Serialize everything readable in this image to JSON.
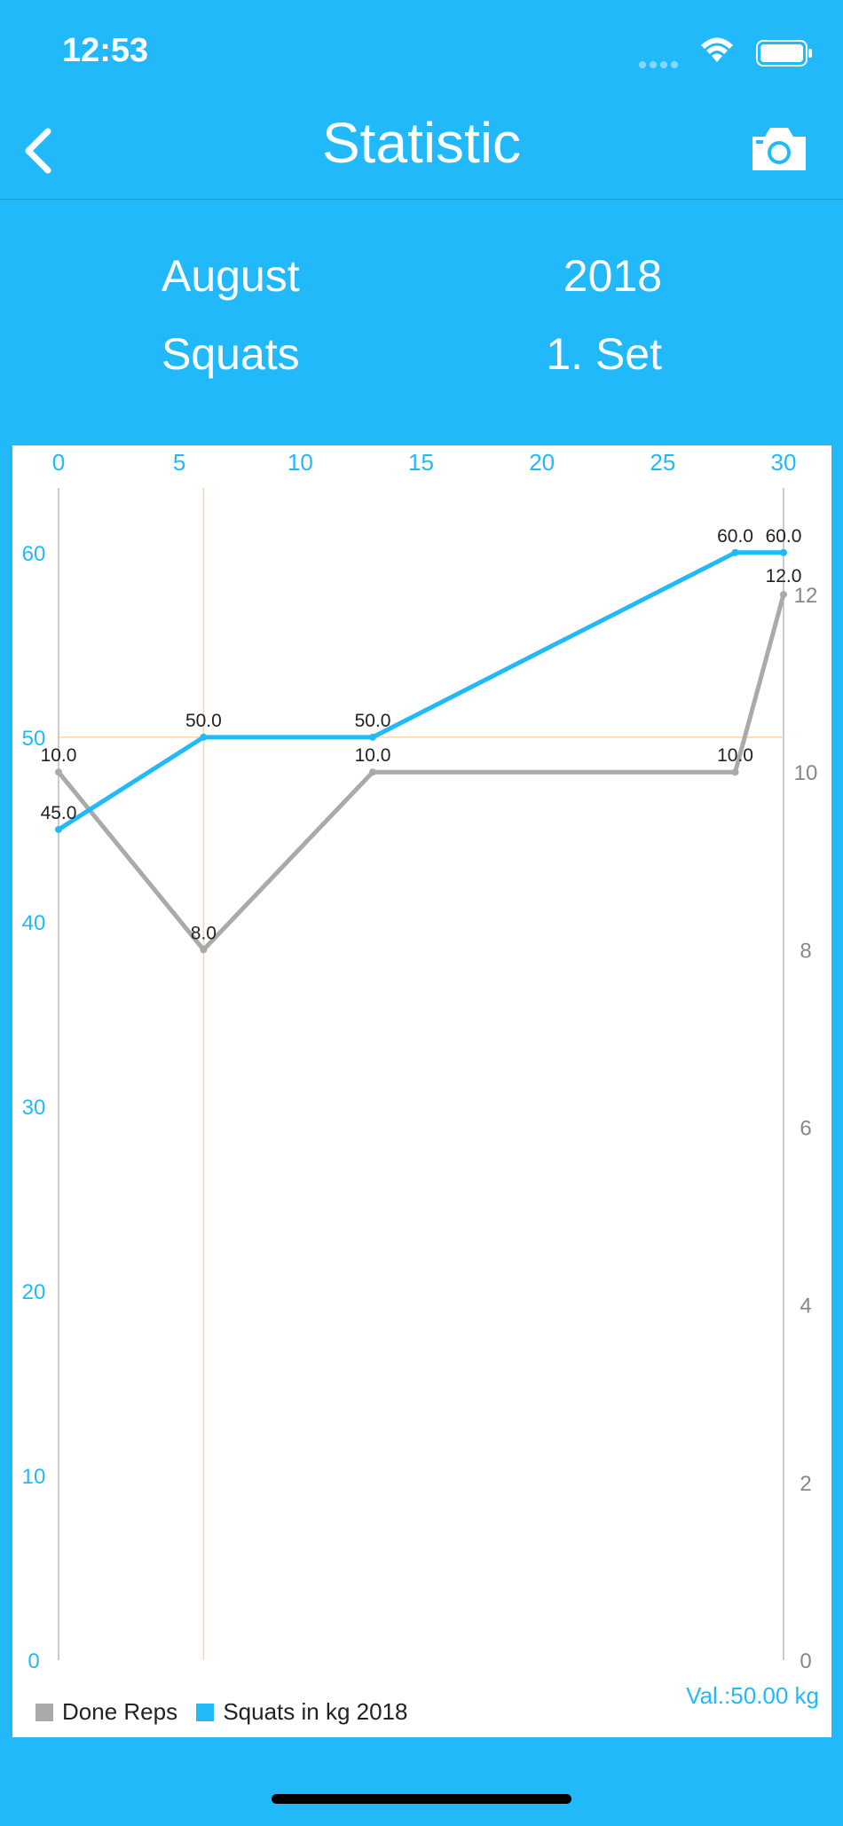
{
  "status_bar": {
    "time": "12:53"
  },
  "nav": {
    "title": "Statistic",
    "back_icon": "chevron-left-icon",
    "camera_icon": "camera-icon"
  },
  "filters": {
    "month": "August",
    "year": "2018",
    "exercise": "Squats",
    "set": "1. Set"
  },
  "colors": {
    "accent": "#22b9fb",
    "reps": "#aaaaaa",
    "highlight": "#ffd2a6"
  },
  "legend": {
    "reps_label": "Done Reps",
    "weight_label": "Squats in kg 2018"
  },
  "highlight_value": "Val.:50.00 kg",
  "chart_data": {
    "type": "line",
    "x_ticks": [
      0,
      5,
      10,
      15,
      20,
      25,
      30
    ],
    "xlim": [
      0,
      30
    ],
    "y_left_ticks": [
      0,
      10,
      20,
      30,
      40,
      50,
      60
    ],
    "ylim_left": [
      0,
      63.5
    ],
    "y_right_ticks": [
      0,
      2,
      4,
      6,
      8,
      10,
      12
    ],
    "ylim_right": [
      0,
      13.2
    ],
    "series": [
      {
        "name": "Done Reps",
        "axis": "right",
        "x": [
          0,
          6,
          13,
          28,
          30
        ],
        "values": [
          10,
          8,
          10,
          10,
          12
        ],
        "labels": [
          "10.0",
          "8.0",
          "10.0",
          "10.0",
          "12.0"
        ]
      },
      {
        "name": "Squats in kg 2018",
        "axis": "left",
        "x": [
          0,
          6,
          13,
          28,
          30
        ],
        "values": [
          45,
          50,
          50,
          60,
          60
        ],
        "labels": [
          "45.0",
          "50.0",
          "50.0",
          "60.0",
          "60.0"
        ]
      }
    ],
    "highlight": {
      "x": 6,
      "y": 50
    },
    "grid": false
  }
}
